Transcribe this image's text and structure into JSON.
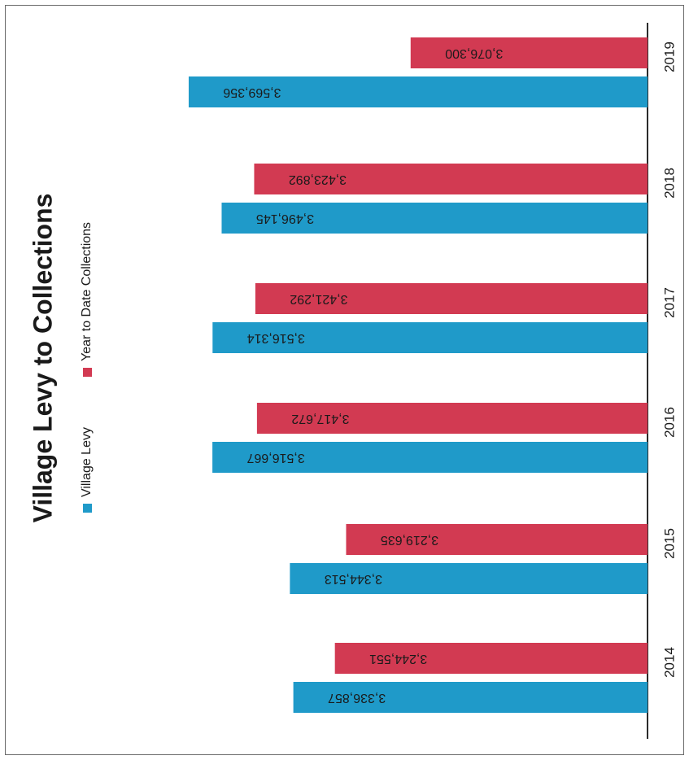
{
  "chart_data": {
    "type": "bar",
    "orientation": "horizontal",
    "rotation_degrees": -90,
    "title": "Village Levy to Collections",
    "categories": [
      "2014",
      "2015",
      "2016",
      "2017",
      "2018",
      "2019"
    ],
    "series": [
      {
        "name": "Village Levy",
        "color": "#1f9ac9",
        "values": [
          3336857,
          3344513,
          3516667,
          3516314,
          3496145,
          3569356
        ],
        "value_labels": [
          "3,336,857",
          "3,344,513",
          "3,516,667",
          "3,516,314",
          "3,496,145",
          "3,569,356"
        ]
      },
      {
        "name": "Year to Date Collections",
        "color": "#d23a52",
        "values": [
          3244551,
          3219635,
          3417672,
          3421292,
          3423892,
          3076300
        ],
        "value_labels": [
          "3,244,551",
          "3,219,635",
          "3,417,672",
          "3,421,292",
          "3,423,892",
          "3,076,300"
        ]
      }
    ],
    "legend": "top",
    "grid": false
  }
}
